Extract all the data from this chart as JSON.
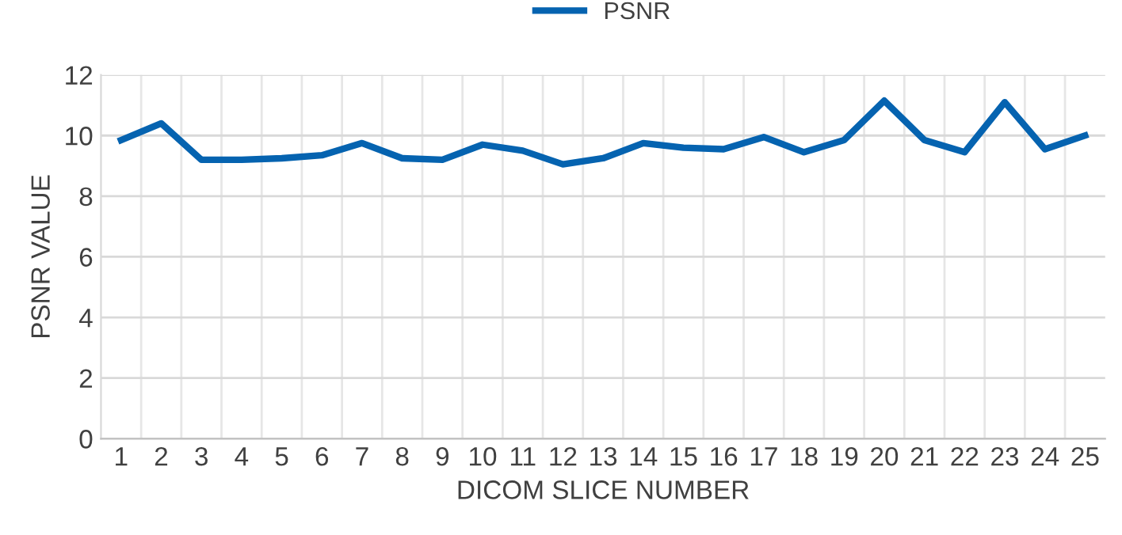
{
  "chart_data": {
    "type": "line",
    "xlabel": "DICOM SLICE NUMBER",
    "ylabel": "PSNR VALUE",
    "categories": [
      "1",
      "2",
      "3",
      "4",
      "5",
      "6",
      "7",
      "8",
      "9",
      "10",
      "11",
      "12",
      "13",
      "14",
      "15",
      "16",
      "17",
      "18",
      "19",
      "20",
      "21",
      "22",
      "23",
      "24",
      "25"
    ],
    "series": [
      {
        "name": "PSNR",
        "color": "#0563b0",
        "values": [
          9.85,
          10.4,
          9.2,
          9.2,
          9.25,
          9.35,
          9.75,
          9.25,
          9.2,
          9.7,
          9.5,
          9.05,
          9.25,
          9.75,
          9.6,
          9.55,
          9.95,
          9.45,
          9.85,
          11.15,
          9.85,
          9.45,
          11.1,
          9.55,
          10.0
        ]
      }
    ],
    "ylim": [
      0,
      12
    ],
    "yticks": [
      0,
      2,
      4,
      6,
      8,
      10,
      12
    ],
    "grid": true,
    "legend": "top",
    "marker": "none",
    "line_style": "solid"
  }
}
